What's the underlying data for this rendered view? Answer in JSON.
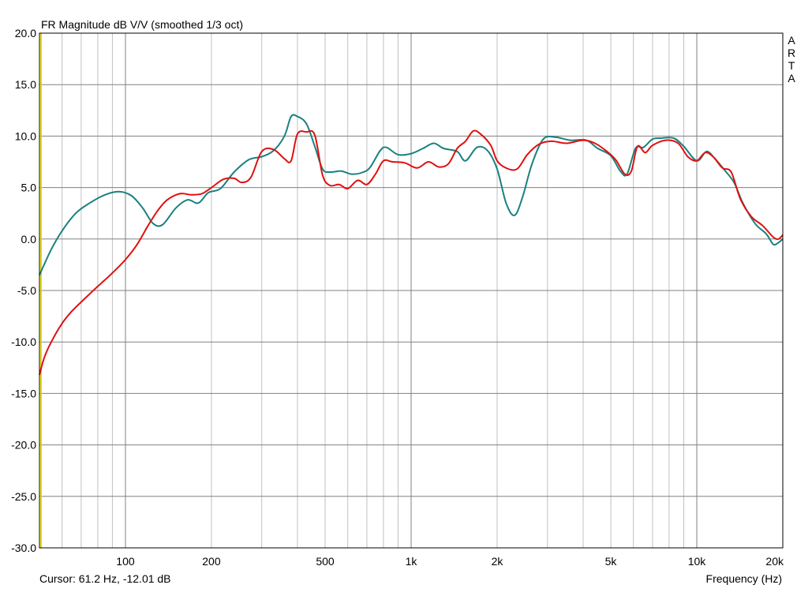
{
  "chart_data": {
    "type": "line",
    "title": "FR Magnitude dB V/V (smoothed 1/3 oct)",
    "xlabel": "Frequency (Hz)",
    "ylabel": "",
    "xscale": "log",
    "xlim": [
      50,
      20000
    ],
    "ylim": [
      -30,
      20
    ],
    "grid": true,
    "y_ticks": [
      "20.0",
      "15.0",
      "10.0",
      "5.0",
      "0.0",
      "-5.0",
      "-10.0",
      "-15.0",
      "-20.0",
      "-25.0",
      "-30.0"
    ],
    "x_ticks": [
      {
        "value": 100,
        "label": "100"
      },
      {
        "value": 200,
        "label": "200"
      },
      {
        "value": 500,
        "label": "500"
      },
      {
        "value": 1000,
        "label": "1k"
      },
      {
        "value": 2000,
        "label": "2k"
      },
      {
        "value": 5000,
        "label": "5k"
      },
      {
        "value": 10000,
        "label": "10k"
      },
      {
        "value": 20000,
        "label": "20k"
      }
    ],
    "cursor_text": "Cursor: 61.2 Hz, -12.01 dB",
    "brand_letters": [
      "A",
      "R",
      "T",
      "A"
    ],
    "colors": {
      "series1": "#1a8080",
      "series2": "#e01010",
      "cursor": "#e8d800",
      "grid": "#c0c0c0",
      "grid_major": "#808080"
    },
    "series": [
      {
        "color": "#1a8080",
        "points": [
          [
            50,
            -3.5
          ],
          [
            55,
            -1.0
          ],
          [
            60,
            0.8
          ],
          [
            67,
            2.5
          ],
          [
            75,
            3.5
          ],
          [
            85,
            4.3
          ],
          [
            95,
            4.6
          ],
          [
            105,
            4.2
          ],
          [
            115,
            3.0
          ],
          [
            125,
            1.5
          ],
          [
            135,
            1.4
          ],
          [
            150,
            3.0
          ],
          [
            165,
            3.8
          ],
          [
            180,
            3.5
          ],
          [
            195,
            4.5
          ],
          [
            215,
            4.9
          ],
          [
            240,
            6.5
          ],
          [
            270,
            7.7
          ],
          [
            300,
            8.0
          ],
          [
            330,
            8.6
          ],
          [
            360,
            10.0
          ],
          [
            380,
            11.9
          ],
          [
            400,
            11.9
          ],
          [
            430,
            11.2
          ],
          [
            460,
            9.0
          ],
          [
            490,
            6.8
          ],
          [
            520,
            6.5
          ],
          [
            570,
            6.6
          ],
          [
            620,
            6.3
          ],
          [
            680,
            6.5
          ],
          [
            720,
            7.0
          ],
          [
            780,
            8.6
          ],
          [
            820,
            8.9
          ],
          [
            900,
            8.2
          ],
          [
            1000,
            8.3
          ],
          [
            1100,
            8.8
          ],
          [
            1200,
            9.3
          ],
          [
            1300,
            8.8
          ],
          [
            1450,
            8.5
          ],
          [
            1550,
            7.6
          ],
          [
            1700,
            8.9
          ],
          [
            1850,
            8.6
          ],
          [
            2000,
            6.8
          ],
          [
            2150,
            3.5
          ],
          [
            2300,
            2.3
          ],
          [
            2450,
            4.0
          ],
          [
            2650,
            7.3
          ],
          [
            2900,
            9.7
          ],
          [
            3200,
            9.9
          ],
          [
            3600,
            9.6
          ],
          [
            4100,
            9.6
          ],
          [
            4500,
            8.8
          ],
          [
            5000,
            8.1
          ],
          [
            5400,
            6.6
          ],
          [
            5700,
            6.3
          ],
          [
            6100,
            8.8
          ],
          [
            6500,
            8.9
          ],
          [
            7000,
            9.7
          ],
          [
            7500,
            9.8
          ],
          [
            8300,
            9.8
          ],
          [
            9000,
            9.0
          ],
          [
            10000,
            7.6
          ],
          [
            10800,
            8.5
          ],
          [
            11500,
            7.9
          ],
          [
            12500,
            6.7
          ],
          [
            13500,
            5.5
          ],
          [
            14500,
            3.5
          ],
          [
            16000,
            1.5
          ],
          [
            17500,
            0.5
          ],
          [
            18500,
            -0.5
          ],
          [
            19200,
            -0.4
          ],
          [
            20000,
            0.0
          ]
        ]
      },
      {
        "color": "#e01010",
        "points": [
          [
            50,
            -13.2
          ],
          [
            52,
            -11.5
          ],
          [
            55,
            -10.0
          ],
          [
            60,
            -8.2
          ],
          [
            65,
            -7.0
          ],
          [
            72,
            -5.8
          ],
          [
            80,
            -4.6
          ],
          [
            90,
            -3.3
          ],
          [
            100,
            -2.0
          ],
          [
            110,
            -0.5
          ],
          [
            120,
            1.3
          ],
          [
            130,
            2.8
          ],
          [
            140,
            3.8
          ],
          [
            155,
            4.4
          ],
          [
            170,
            4.3
          ],
          [
            185,
            4.4
          ],
          [
            200,
            5.0
          ],
          [
            220,
            5.8
          ],
          [
            240,
            5.9
          ],
          [
            255,
            5.5
          ],
          [
            275,
            6.0
          ],
          [
            300,
            8.5
          ],
          [
            330,
            8.7
          ],
          [
            360,
            7.8
          ],
          [
            380,
            7.6
          ],
          [
            400,
            10.2
          ],
          [
            430,
            10.4
          ],
          [
            460,
            10.1
          ],
          [
            490,
            6.2
          ],
          [
            520,
            5.2
          ],
          [
            560,
            5.3
          ],
          [
            600,
            4.9
          ],
          [
            650,
            5.7
          ],
          [
            700,
            5.3
          ],
          [
            750,
            6.3
          ],
          [
            800,
            7.6
          ],
          [
            860,
            7.5
          ],
          [
            950,
            7.4
          ],
          [
            1050,
            6.9
          ],
          [
            1150,
            7.5
          ],
          [
            1250,
            7.0
          ],
          [
            1350,
            7.3
          ],
          [
            1450,
            8.8
          ],
          [
            1550,
            9.5
          ],
          [
            1650,
            10.5
          ],
          [
            1750,
            10.2
          ],
          [
            1900,
            9.1
          ],
          [
            2000,
            7.6
          ],
          [
            2150,
            6.9
          ],
          [
            2350,
            6.8
          ],
          [
            2550,
            8.2
          ],
          [
            2800,
            9.2
          ],
          [
            3100,
            9.5
          ],
          [
            3500,
            9.3
          ],
          [
            4000,
            9.6
          ],
          [
            4400,
            9.3
          ],
          [
            4800,
            8.6
          ],
          [
            5200,
            7.7
          ],
          [
            5600,
            6.3
          ],
          [
            5900,
            6.6
          ],
          [
            6200,
            9.0
          ],
          [
            6600,
            8.4
          ],
          [
            7000,
            9.1
          ],
          [
            7800,
            9.6
          ],
          [
            8600,
            9.3
          ],
          [
            9300,
            8.0
          ],
          [
            10000,
            7.6
          ],
          [
            10700,
            8.4
          ],
          [
            11400,
            8.0
          ],
          [
            12300,
            6.9
          ],
          [
            13200,
            6.5
          ],
          [
            14200,
            3.9
          ],
          [
            15500,
            2.2
          ],
          [
            17000,
            1.3
          ],
          [
            18500,
            0.2
          ],
          [
            19300,
            0.0
          ],
          [
            20000,
            0.4
          ]
        ]
      }
    ]
  }
}
